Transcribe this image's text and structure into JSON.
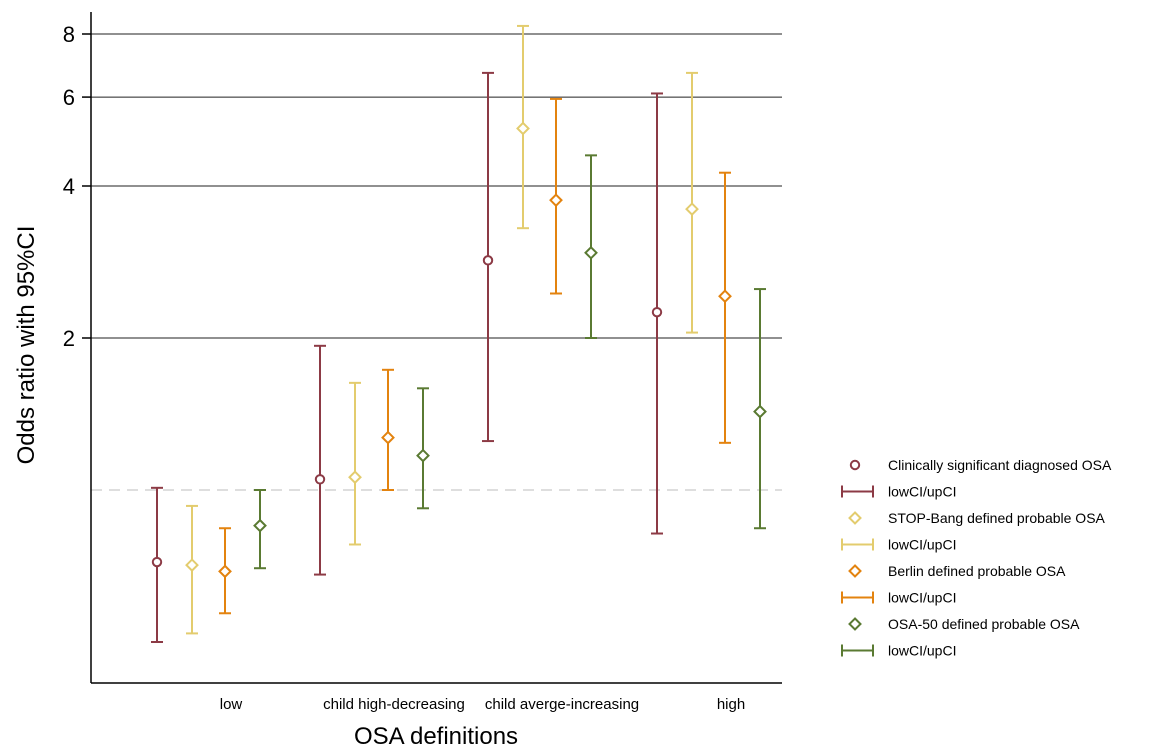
{
  "chart_data": {
    "type": "scatter",
    "xlabel": "OSA definitions",
    "ylabel": "Odds ratio with 95%CI",
    "y_scale": "log",
    "ylim": [
      0.48,
      9.1
    ],
    "yticks": [
      2,
      4,
      6,
      8
    ],
    "reference_line": 1,
    "grid": "horizontal at y ticks",
    "legend_position": "right",
    "categories": [
      "low",
      "child high-decreasing",
      "child averge-increasing",
      "high"
    ],
    "series": [
      {
        "name": "Clinically significant diagnosed OSA",
        "ci_name": "lowCI/upCI",
        "marker": "circle",
        "color": "#8c3a45",
        "points": [
          {
            "category": "low",
            "or": 0.72,
            "low": 0.5,
            "up": 1.01
          },
          {
            "category": "child high-decreasing",
            "or": 1.05,
            "low": 0.68,
            "up": 1.93
          },
          {
            "category": "child averge-increasing",
            "or": 2.85,
            "low": 1.25,
            "up": 6.7
          },
          {
            "category": "high",
            "or": 2.25,
            "low": 0.82,
            "up": 6.1
          }
        ]
      },
      {
        "name": "STOP-Bang defined probable OSA",
        "ci_name": "lowCI/upCI",
        "marker": "diamond",
        "color": "#e3cc6e",
        "points": [
          {
            "category": "low",
            "or": 0.71,
            "low": 0.52,
            "up": 0.93
          },
          {
            "category": "child high-decreasing",
            "or": 1.06,
            "low": 0.78,
            "up": 1.63
          },
          {
            "category": "child averge-increasing",
            "or": 5.2,
            "low": 3.3,
            "up": 8.3
          },
          {
            "category": "high",
            "or": 3.6,
            "low": 2.05,
            "up": 6.7
          }
        ]
      },
      {
        "name": "Berlin defined probable OSA",
        "ci_name": "lowCI/upCI",
        "marker": "diamond",
        "color": "#e3830f",
        "points": [
          {
            "category": "low",
            "or": 0.69,
            "low": 0.57,
            "up": 0.84
          },
          {
            "category": "child high-decreasing",
            "or": 1.27,
            "low": 1.0,
            "up": 1.73
          },
          {
            "category": "child averge-increasing",
            "or": 3.75,
            "low": 2.45,
            "up": 5.95
          },
          {
            "category": "high",
            "or": 2.42,
            "low": 1.24,
            "up": 4.25
          }
        ]
      },
      {
        "name": "OSA-50 defined probable OSA",
        "ci_name": "lowCI/upCI",
        "marker": "diamond",
        "color": "#5a7a32",
        "points": [
          {
            "category": "low",
            "or": 0.85,
            "low": 0.7,
            "up": 1.0
          },
          {
            "category": "child high-decreasing",
            "or": 1.17,
            "low": 0.92,
            "up": 1.59
          },
          {
            "category": "child averge-increasing",
            "or": 2.95,
            "low": 2.0,
            "up": 4.6
          },
          {
            "category": "high",
            "or": 1.43,
            "low": 0.84,
            "up": 2.5
          }
        ]
      }
    ]
  }
}
